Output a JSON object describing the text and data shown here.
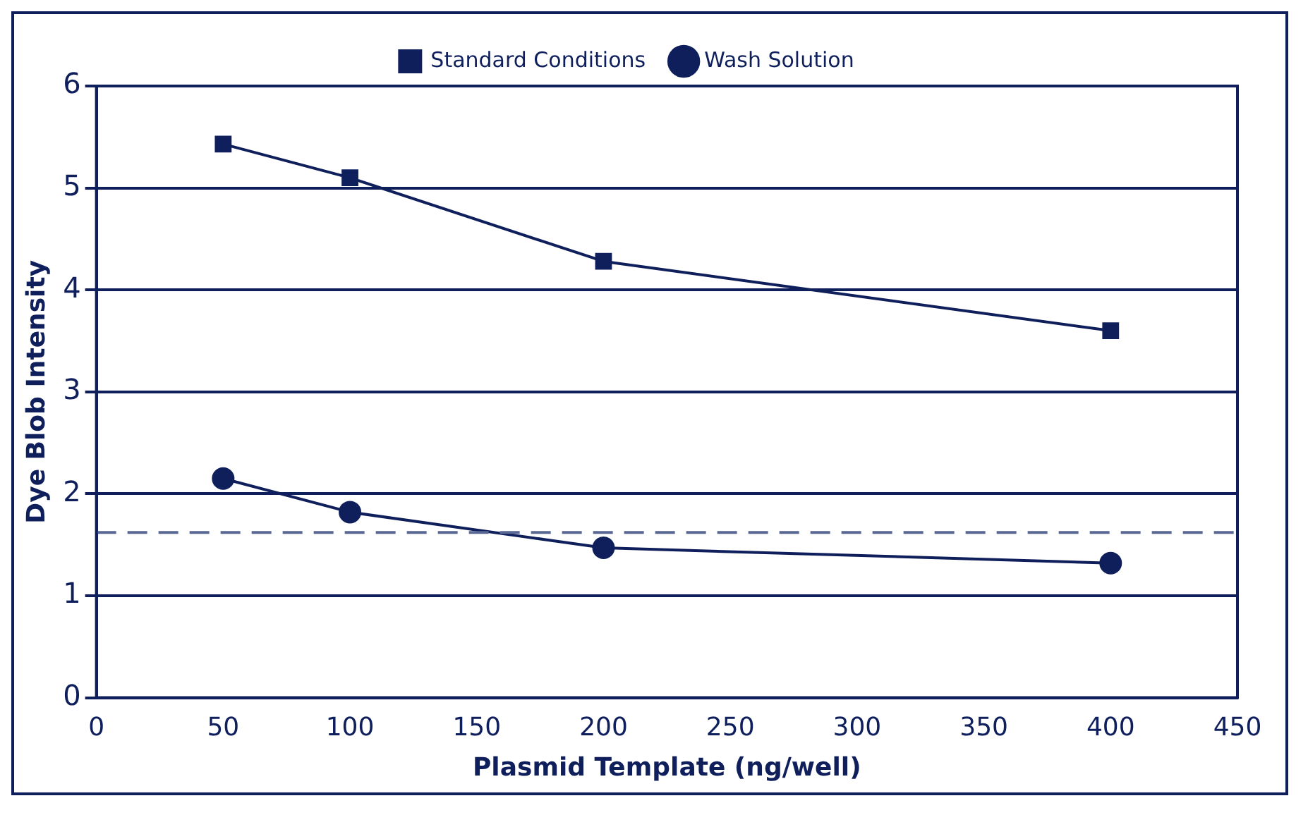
{
  "chart_data": {
    "type": "line",
    "xlabel": "Plasmid Template (ng/well)",
    "ylabel": "Dye Blob Intensity",
    "x": [
      50,
      100,
      200,
      400
    ],
    "series": [
      {
        "name": "Standard Conditions",
        "color": "#0f1f5c",
        "values": [
          5.43,
          5.1,
          4.28,
          3.6
        ],
        "marker": "square"
      },
      {
        "name": "Wash Solution",
        "color": "#0f1f5c",
        "values": [
          2.15,
          1.82,
          1.47,
          1.32
        ],
        "marker": "circle"
      }
    ],
    "xlim": [
      0,
      450
    ],
    "xticks": [
      0,
      50,
      100,
      150,
      200,
      250,
      300,
      350,
      400,
      450
    ],
    "ylim": [
      0,
      6
    ],
    "yticks": [
      0,
      1,
      2,
      3,
      4,
      5,
      6
    ],
    "ref_lines": [
      {
        "axis": "y",
        "value": 1.62,
        "color": "#5a6894",
        "line_style": "dashed"
      }
    ],
    "grid": "y",
    "legend": "top",
    "line_style": "solid"
  }
}
